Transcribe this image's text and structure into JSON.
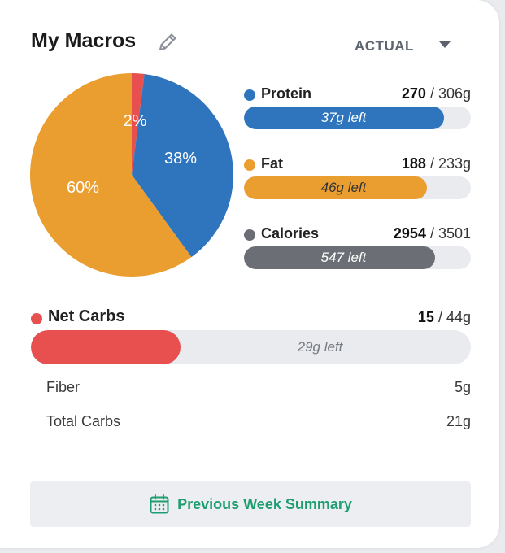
{
  "header": {
    "title": "My Macros",
    "mode": "ACTUAL"
  },
  "pie": {
    "slices": [
      {
        "name": "Net Carbs",
        "percent": 2,
        "label": "2%",
        "color": "#e84f4f"
      },
      {
        "name": "Protein",
        "percent": 38,
        "label": "38%",
        "color": "#2f75bd"
      },
      {
        "name": "Fat",
        "percent": 60,
        "label": "60%",
        "color": "#eb9e30"
      }
    ]
  },
  "macros": [
    {
      "name": "Protein",
      "current": "270",
      "goal": " / 306g",
      "left_text": "37g left",
      "fill_fraction": 0.882,
      "color": "#2f75bd",
      "text_color": "#ffffff"
    },
    {
      "name": "Fat",
      "current": "188",
      "goal": " / 233g",
      "left_text": "46g left",
      "fill_fraction": 0.807,
      "color": "#eb9e30",
      "text_color": "#333333"
    },
    {
      "name": "Calories",
      "current": "2954",
      "goal": " / 3501",
      "left_text": "547 left",
      "fill_fraction": 0.844,
      "color": "#6b6e74",
      "text_color": "#ffffff"
    }
  ],
  "net_carbs": {
    "name": "Net Carbs",
    "current": "15",
    "goal": " / 44g",
    "left_text": "29g left",
    "fill_fraction": 0.341,
    "color": "#e84f4f"
  },
  "details": [
    {
      "label": "Fiber",
      "value": "5g"
    },
    {
      "label": "Total Carbs",
      "value": "21g"
    }
  ],
  "footer": {
    "button_label": "Previous Week Summary",
    "accent": "#1e9e70"
  },
  "icons": {
    "edit": "pencil-icon",
    "dropdown": "caret-down-icon",
    "calendar": "calendar-icon"
  }
}
